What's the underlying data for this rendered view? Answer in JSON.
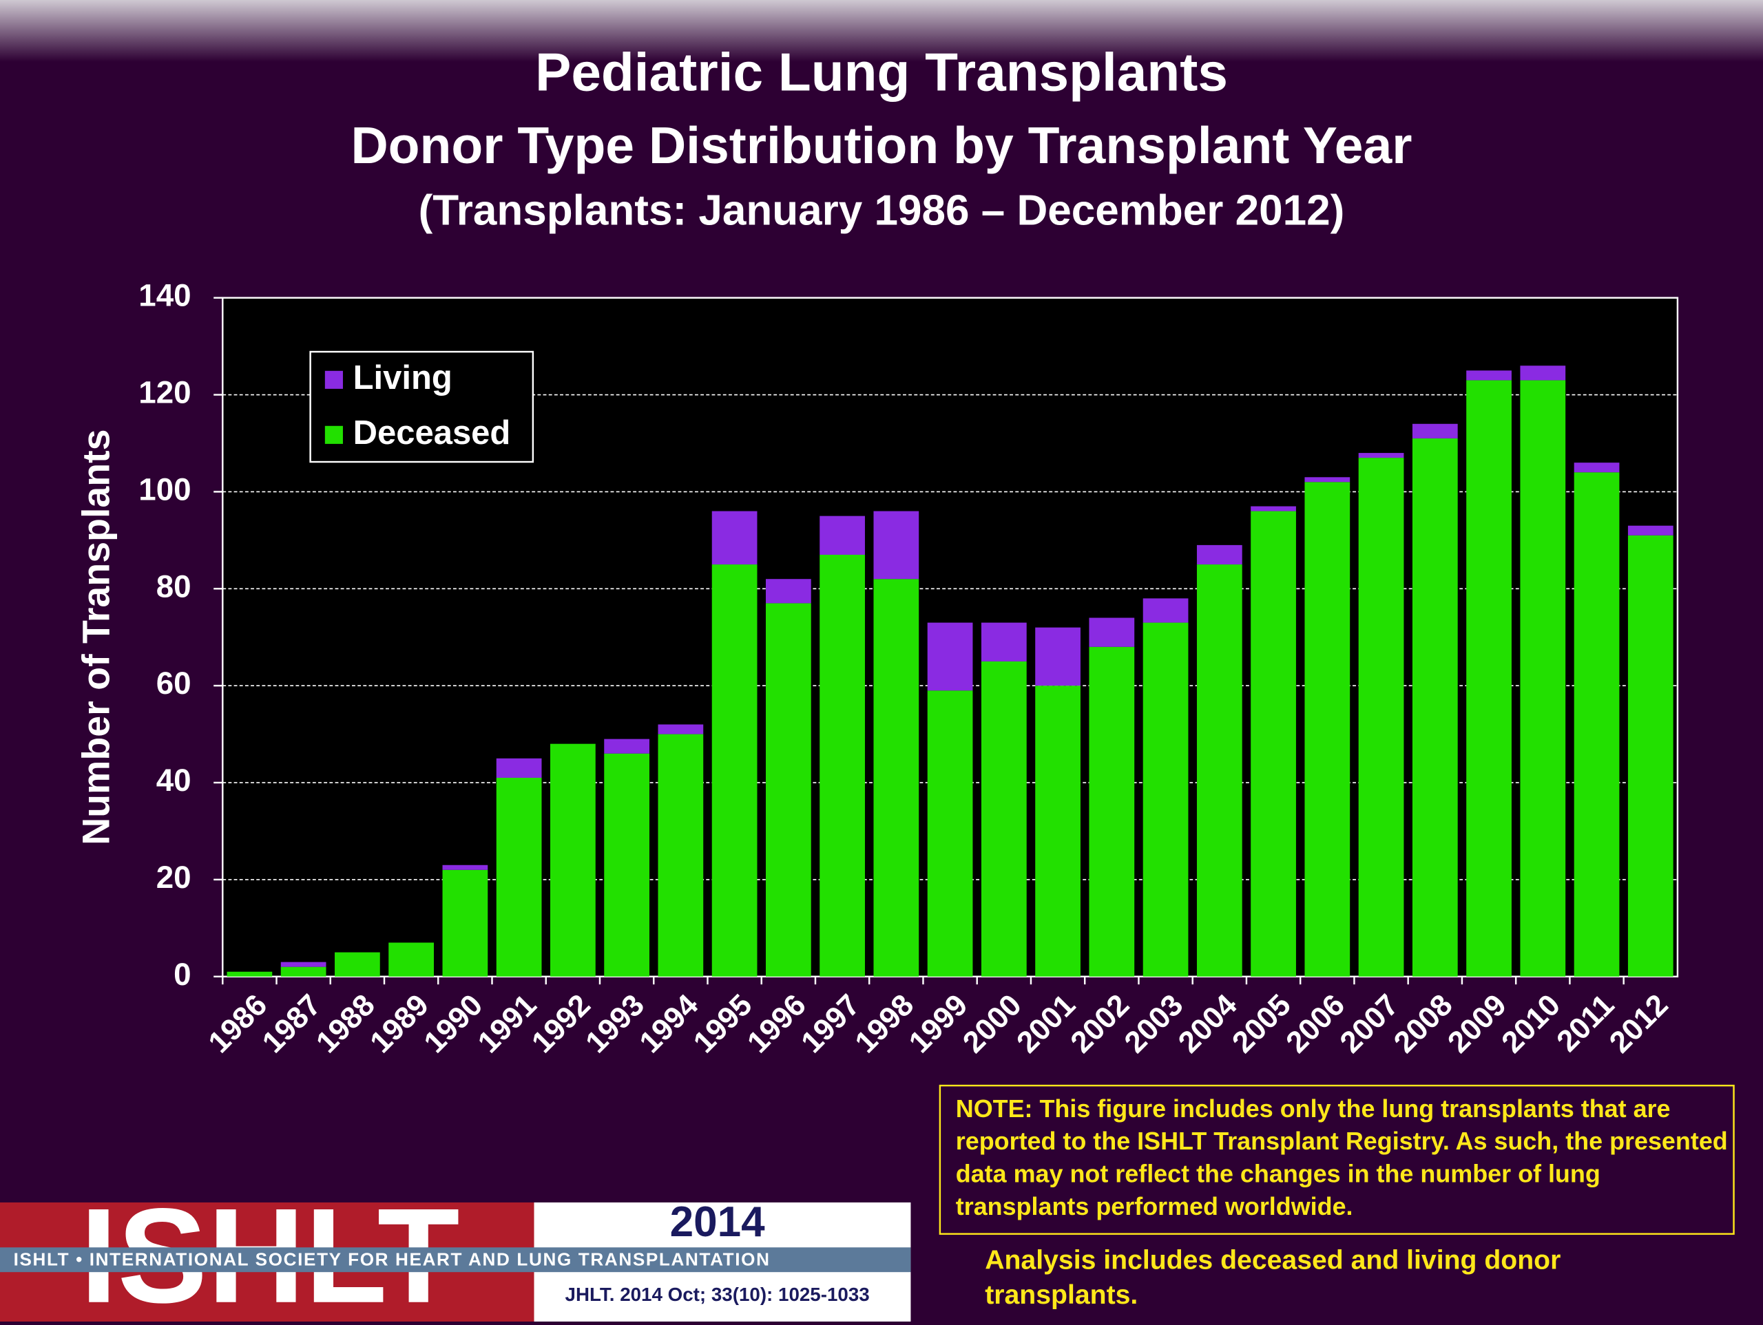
{
  "chart_data": {
    "type": "stacked_bar",
    "title": "Pediatric Lung Transplants",
    "subtitle": "Donor Type Distribution by Transplant Year",
    "period": "(Transplants: January 1986 – December 2012)",
    "y_label": "Number of Transplants",
    "categories": [
      "1986",
      "1987",
      "1988",
      "1989",
      "1990",
      "1991",
      "1992",
      "1993",
      "1994",
      "1995",
      "1996",
      "1997",
      "1998",
      "1999",
      "2000",
      "2001",
      "2002",
      "2003",
      "2004",
      "2005",
      "2006",
      "2007",
      "2008",
      "2009",
      "2010",
      "2011",
      "2012"
    ],
    "series": [
      {
        "name": "Deceased",
        "color": "#22e000",
        "values": [
          1,
          2,
          5,
          7,
          22,
          41,
          48,
          46,
          50,
          85,
          77,
          87,
          82,
          59,
          65,
          60,
          68,
          73,
          85,
          96,
          102,
          107,
          111,
          123,
          123,
          104,
          91
        ]
      },
      {
        "name": "Living",
        "color": "#8a2be2",
        "values": [
          0,
          1,
          0,
          0,
          1,
          4,
          0,
          3,
          2,
          11,
          5,
          8,
          14,
          14,
          8,
          12,
          6,
          5,
          4,
          1,
          1,
          1,
          3,
          2,
          3,
          2,
          2
        ]
      }
    ],
    "ylim": [
      0,
      140
    ],
    "yticks": [
      0,
      20,
      40,
      60,
      80,
      100,
      120,
      140
    ],
    "grid": true,
    "legend": "upper left"
  },
  "note": "NOTE: This figure includes only the lung transplants that are reported to the ISHLT Transplant Registry. As such, the presented data may not reflect the changes in the number of lung transplants performed worldwide.",
  "analysis": "Analysis includes deceased and living donor transplants.",
  "footer": {
    "logo": "ISHLT",
    "society": "ISHLT • INTERNATIONAL SOCIETY FOR HEART AND LUNG TRANSPLANTATION",
    "year": "2014",
    "citation": "JHLT. 2014 Oct; 33(10): 1025-1033"
  }
}
